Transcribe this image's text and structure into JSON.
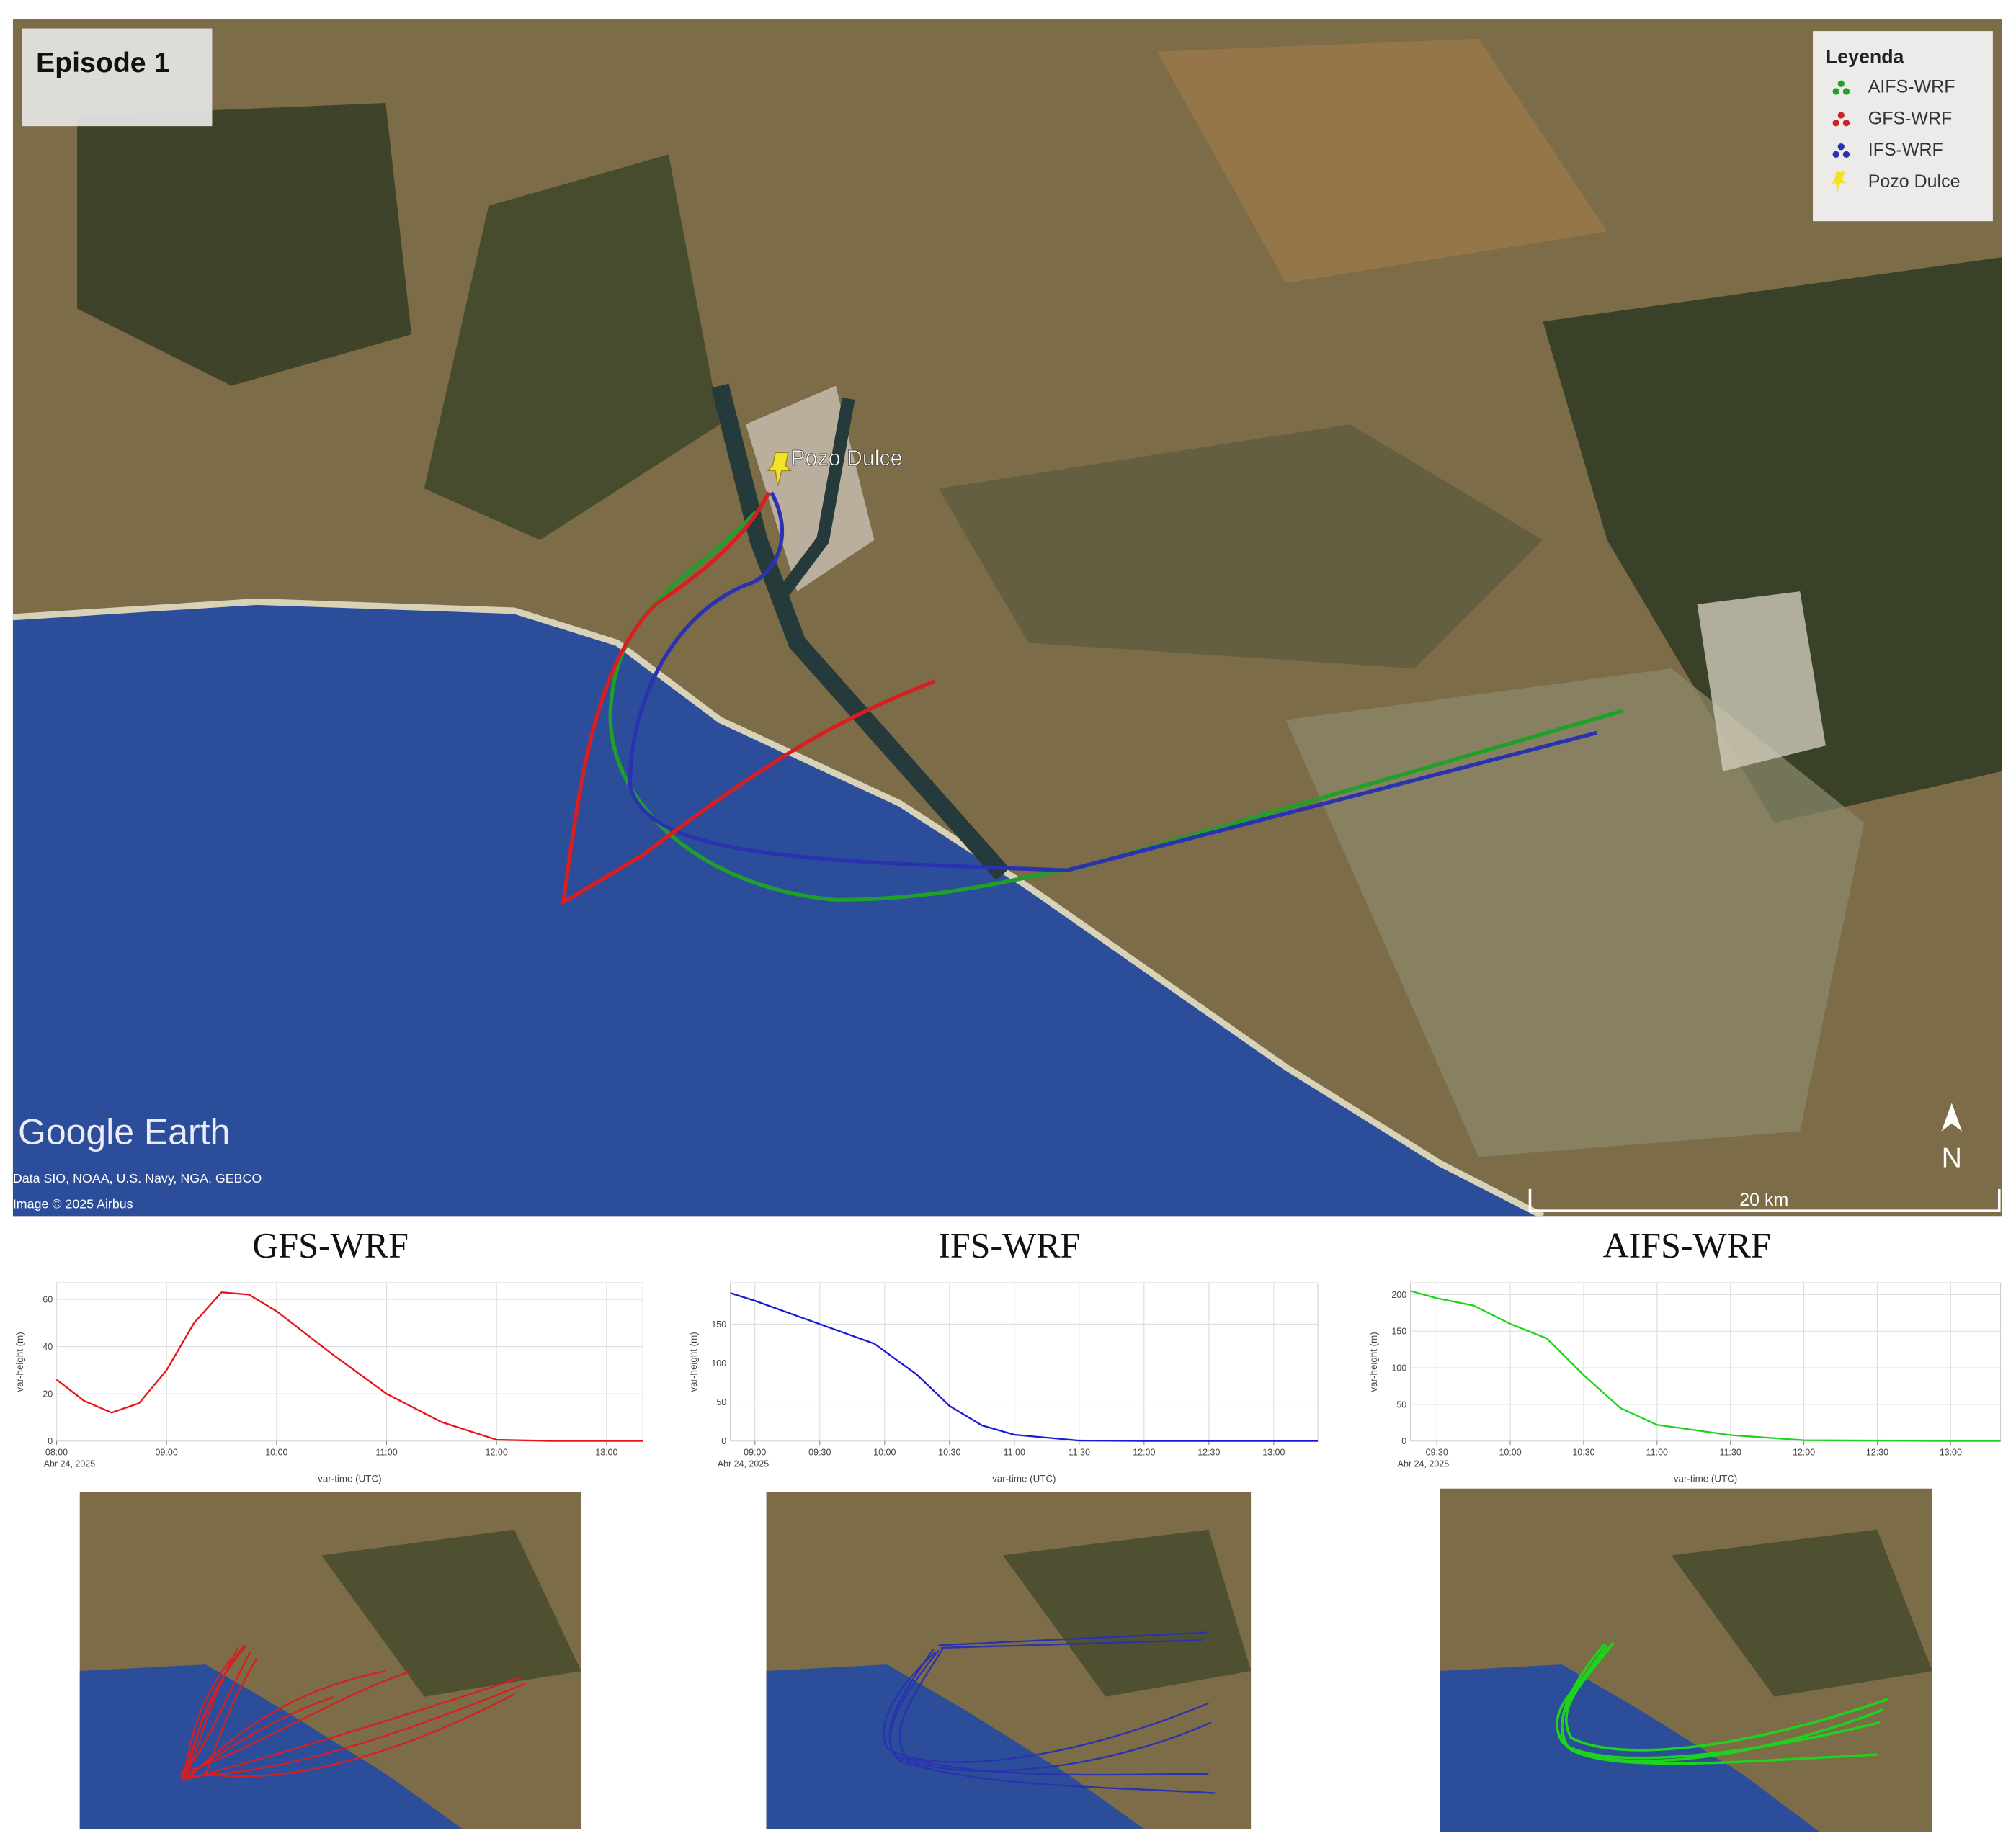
{
  "map": {
    "title": "Episode 1",
    "legend": {
      "title": "Leyenda",
      "items": [
        {
          "label": "AIFS-WRF",
          "color": "#1ea02a"
        },
        {
          "label": "GFS-WRF",
          "color": "#c0282a"
        },
        {
          "label": "IFS-WRF",
          "color": "#2a32b0"
        },
        {
          "label": "Pozo Dulce",
          "color": "#f2e22a"
        }
      ]
    },
    "placemark": "Pozo Dulce",
    "watermark": "Google Earth",
    "attribution": [
      "Data SIO, NOAA, U.S. Navy, NGA, GEBCO",
      "Image © 2025 Airbus"
    ],
    "scale": "20 km",
    "north": "N"
  },
  "chart_data": [
    {
      "type": "line",
      "title": "GFS-WRF",
      "x_label": "var-time (UTC)",
      "y_label": "var-height (m)",
      "date_label": "Abr 24, 2025",
      "color": "#e8141c",
      "grid": true,
      "x": [
        8,
        8.25,
        8.5,
        8.75,
        9,
        9.25,
        9.5,
        9.75,
        10,
        10.5,
        11,
        11.5,
        12,
        12.5,
        13,
        13.33
      ],
      "values": [
        26,
        17,
        12,
        16,
        30,
        50,
        63,
        62,
        55,
        37,
        20,
        8,
        0.5,
        0,
        0,
        0
      ],
      "xlim": [
        8,
        13.33
      ],
      "ylim": [
        0,
        67
      ],
      "xticks": [
        {
          "value": 8,
          "label": "08:00"
        },
        {
          "value": 9,
          "label": "09:00"
        },
        {
          "value": 10,
          "label": "10:00"
        },
        {
          "value": 11,
          "label": "11:00"
        },
        {
          "value": 12,
          "label": "12:00"
        },
        {
          "value": 13,
          "label": "13:00"
        }
      ],
      "yticks": [
        0,
        20,
        40,
        60
      ]
    },
    {
      "type": "line",
      "title": "IFS-WRF",
      "x_label": "var-time (UTC)",
      "y_label": "var-height (m)",
      "date_label": "Abr 24, 2025",
      "color": "#1a1ad8",
      "grid": true,
      "x": [
        8.81,
        9,
        9.5,
        9.92,
        10.25,
        10.5,
        10.75,
        11,
        11.5,
        12,
        13,
        13.34
      ],
      "values": [
        190,
        180,
        150,
        125,
        85,
        45,
        20,
        8,
        0.5,
        0,
        0,
        0
      ],
      "xlim": [
        8.81,
        13.34
      ],
      "ylim": [
        0,
        203
      ],
      "xticks": [
        {
          "value": 9,
          "label": "09:00"
        },
        {
          "value": 9.5,
          "label": "09:30"
        },
        {
          "value": 10,
          "label": "10:00"
        },
        {
          "value": 10.5,
          "label": "10:30"
        },
        {
          "value": 11,
          "label": "11:00"
        },
        {
          "value": 11.5,
          "label": "11:30"
        },
        {
          "value": 12,
          "label": "12:00"
        },
        {
          "value": 12.5,
          "label": "12:30"
        },
        {
          "value": 13,
          "label": "13:00"
        }
      ],
      "yticks": [
        0,
        50,
        100,
        150
      ]
    },
    {
      "type": "line",
      "title": "AIFS-WRF",
      "x_label": "var-time (UTC)",
      "y_label": "var-height (m)",
      "date_label": "Abr 24, 2025",
      "color": "#1ed21e",
      "grid": true,
      "x": [
        9.32,
        9.5,
        9.75,
        10,
        10.25,
        10.5,
        10.75,
        11,
        11.5,
        12,
        13,
        13.34
      ],
      "values": [
        205,
        195,
        185,
        160,
        140,
        90,
        45,
        22,
        8,
        1,
        0,
        0
      ],
      "xlim": [
        9.32,
        13.34
      ],
      "ylim": [
        0,
        216
      ],
      "xticks": [
        {
          "value": 9.5,
          "label": "09:30"
        },
        {
          "value": 10,
          "label": "10:00"
        },
        {
          "value": 10.5,
          "label": "10:30"
        },
        {
          "value": 11,
          "label": "11:00"
        },
        {
          "value": 11.5,
          "label": "11:30"
        },
        {
          "value": 12,
          "label": "12:00"
        },
        {
          "value": 12.5,
          "label": "12:30"
        },
        {
          "value": 13,
          "label": "13:00"
        }
      ],
      "yticks": [
        0,
        50,
        100,
        150,
        200
      ]
    }
  ]
}
